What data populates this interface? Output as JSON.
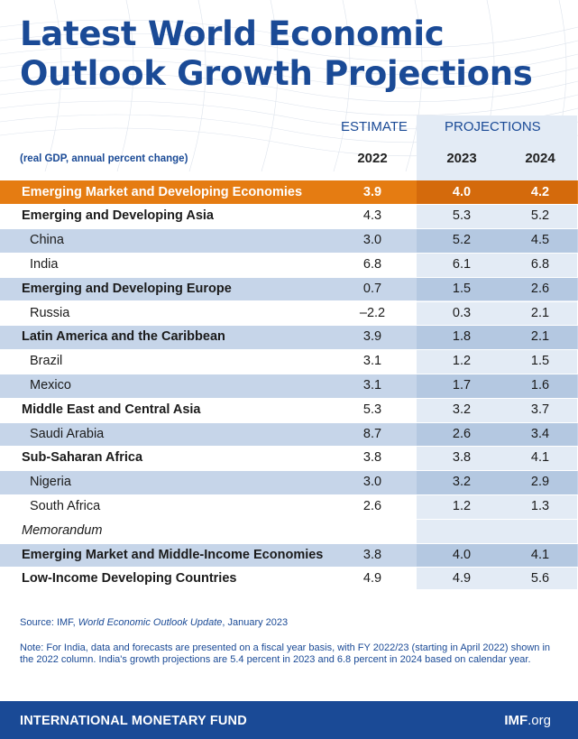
{
  "title_line1": "Latest World Economic",
  "title_line2": "Outlook Growth Projections",
  "headers": {
    "estimate": "ESTIMATE",
    "projections": "PROJECTIONS"
  },
  "subtitle": "(real GDP, annual percent change)",
  "years": [
    "2022",
    "2023",
    "2024"
  ],
  "rows": [
    {
      "label": "Emerging Market and Developing Economies",
      "v2022": "3.9",
      "v2023": "4.0",
      "v2024": "4.2"
    },
    {
      "label": "Emerging and Developing Asia",
      "v2022": "4.3",
      "v2023": "5.3",
      "v2024": "5.2"
    },
    {
      "label": "China",
      "v2022": "3.0",
      "v2023": "5.2",
      "v2024": "4.5"
    },
    {
      "label": "India",
      "v2022": "6.8",
      "v2023": "6.1",
      "v2024": "6.8"
    },
    {
      "label": "Emerging and Developing Europe",
      "v2022": "0.7",
      "v2023": "1.5",
      "v2024": "2.6"
    },
    {
      "label": "Russia",
      "v2022": "–2.2",
      "v2023": "0.3",
      "v2024": "2.1"
    },
    {
      "label": "Latin America and the Caribbean",
      "v2022": "3.9",
      "v2023": "1.8",
      "v2024": "2.1"
    },
    {
      "label": "Brazil",
      "v2022": "3.1",
      "v2023": "1.2",
      "v2024": "1.5"
    },
    {
      "label": "Mexico",
      "v2022": "3.1",
      "v2023": "1.7",
      "v2024": "1.6"
    },
    {
      "label": "Middle East and Central Asia",
      "v2022": "5.3",
      "v2023": "3.2",
      "v2024": "3.7"
    },
    {
      "label": "Saudi Arabia",
      "v2022": "8.7",
      "v2023": "2.6",
      "v2024": "3.4"
    },
    {
      "label": "Sub-Saharan Africa",
      "v2022": "3.8",
      "v2023": "3.8",
      "v2024": "4.1"
    },
    {
      "label": "Nigeria",
      "v2022": "3.0",
      "v2023": "3.2",
      "v2024": "2.9"
    },
    {
      "label": "South Africa",
      "v2022": "2.6",
      "v2023": "1.2",
      "v2024": "1.3"
    },
    {
      "label": "Memorandum",
      "v2022": "",
      "v2023": "",
      "v2024": ""
    },
    {
      "label": "Emerging Market and Middle-Income Economies",
      "v2022": "3.8",
      "v2023": "4.0",
      "v2024": "4.1"
    },
    {
      "label": "Low-Income Developing Countries",
      "v2022": "4.9",
      "v2023": "4.9",
      "v2024": "5.6"
    }
  ],
  "source_prefix": "Source: IMF, ",
  "source_title": "World Economic Outlook Update",
  "source_suffix": ", January 2023",
  "note": "Note: For India, data and forecasts are presented on a fiscal year basis, with FY 2022/23 (starting in April 2022) shown in the 2022 column. India's growth projections are 5.4 percent in 2023 and 6.8 percent in 2024 based on calendar year.",
  "footer_org": "INTERNATIONAL MONETARY FUND",
  "footer_site_bold": "IMF",
  "footer_site_rest": ".org",
  "colors": {
    "brand_blue": "#1a4a96",
    "highlight_orange": "#e57c12",
    "row_blue": "#c6d5e9"
  }
}
